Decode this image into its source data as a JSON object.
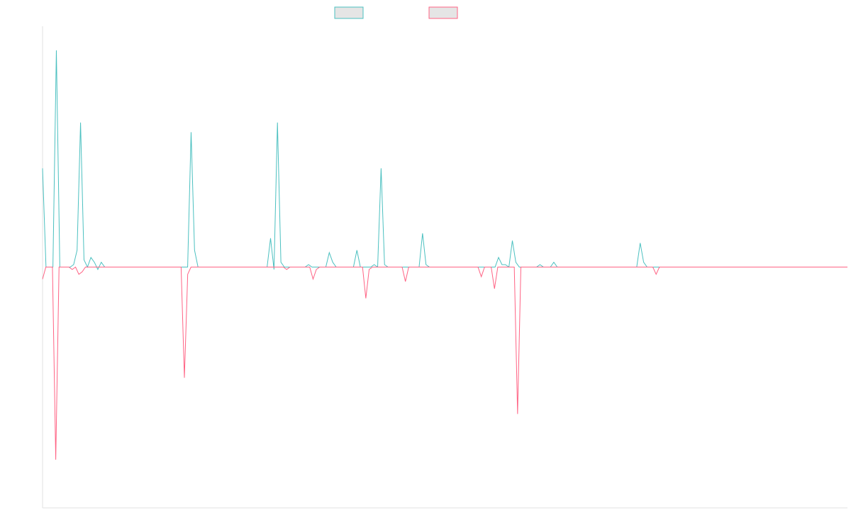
{
  "chart_data": {
    "type": "line",
    "title": "",
    "xlabel": "",
    "ylabel": "",
    "grid": false,
    "legend": {
      "placement": "top-center"
    },
    "colors": {
      "series1": "#4bc0c0",
      "series2": "#ff6384",
      "swatch_fill": "#e5e5e5",
      "axis": "#e0e0e0"
    },
    "ylim": [
      -1.0,
      1.0
    ],
    "series": [
      {
        "key": "s1",
        "values": [
          0.41,
          0,
          0,
          0,
          0.9,
          0,
          0,
          0,
          0,
          0.01,
          0.07,
          0.6,
          0.03,
          0,
          0.04,
          0.02,
          -0.01,
          0.02,
          0,
          0,
          0,
          0,
          0,
          0,
          0,
          0,
          0,
          0,
          0,
          0,
          0,
          0,
          0,
          0,
          0,
          0,
          0,
          0,
          0,
          0,
          0,
          0,
          0,
          0.56,
          0.07,
          0,
          0,
          0,
          0,
          0,
          0,
          0,
          0,
          0,
          0,
          0,
          0,
          0,
          0,
          0,
          0,
          0,
          0,
          0,
          0,
          0,
          0.12,
          -0.01,
          0.6,
          0.02,
          0,
          0,
          0,
          0,
          0,
          0,
          0,
          0.01,
          0,
          0,
          0,
          0,
          0,
          0.06,
          0.02,
          0,
          0,
          0,
          0,
          0,
          0,
          0.07,
          0,
          0,
          0,
          0,
          0.01,
          0,
          0.41,
          0.01,
          0,
          0,
          0,
          0,
          0,
          0,
          0,
          0,
          0,
          0,
          0.14,
          0.01,
          0,
          0,
          0,
          0,
          0,
          0,
          0,
          0,
          0,
          0,
          0,
          0,
          0,
          0,
          0,
          0,
          0,
          0,
          0,
          0,
          0.04,
          0.01,
          0.01,
          0,
          0.11,
          0.02,
          0,
          0,
          0,
          0,
          0,
          0,
          0.01,
          0,
          0,
          0,
          0.02,
          0,
          0,
          0,
          0,
          0,
          0,
          0,
          0,
          0,
          0,
          0,
          0,
          0,
          0,
          0,
          0,
          0,
          0,
          0,
          0,
          0,
          0,
          0,
          0,
          0.1,
          0.02,
          0,
          0,
          0,
          0,
          0,
          0,
          0,
          0,
          0,
          0,
          0,
          0,
          0,
          0,
          0,
          0,
          0,
          0,
          0,
          0,
          0,
          0,
          0,
          0,
          0,
          0,
          0,
          0,
          0,
          0,
          0,
          0,
          0,
          0,
          0,
          0,
          0,
          0,
          0,
          0,
          0,
          0,
          0,
          0,
          0,
          0,
          0,
          0,
          0,
          0,
          0,
          0,
          0,
          0,
          0,
          0,
          0,
          0,
          0
        ]
      },
      {
        "key": "s2",
        "values": [
          -0.05,
          0,
          0,
          0,
          -0.8,
          0,
          0,
          0,
          0,
          -0.01,
          0,
          -0.03,
          -0.02,
          0,
          0,
          0,
          0,
          0,
          0,
          0,
          0,
          0,
          0,
          0,
          0,
          0,
          0,
          0,
          0,
          0,
          0,
          0,
          0,
          0,
          0,
          0,
          0,
          0,
          0,
          0,
          0,
          0,
          0,
          -0.46,
          -0.03,
          0,
          0,
          0,
          0,
          0,
          0,
          0,
          0,
          0,
          0,
          0,
          0,
          0,
          0,
          0,
          0,
          0,
          0,
          0,
          0,
          0,
          0,
          0,
          0,
          0,
          0,
          0,
          0,
          0,
          -0.01,
          0,
          0,
          0,
          0,
          0,
          0,
          0,
          -0.05,
          -0.01,
          0,
          0,
          0,
          0,
          0,
          0,
          0,
          0,
          0,
          0,
          0,
          0,
          0,
          0,
          -0.13,
          -0.01,
          0,
          0,
          0,
          0,
          0,
          0,
          0,
          0,
          0,
          0,
          -0.06,
          0,
          0,
          0,
          0,
          0,
          0,
          0,
          0,
          0,
          0,
          0,
          0,
          0,
          0,
          0,
          0,
          0,
          0,
          0,
          0,
          0,
          0,
          -0.04,
          0,
          0,
          0,
          -0.09,
          0,
          0,
          0,
          0,
          0,
          0,
          -0.61,
          0,
          0,
          0,
          0,
          0,
          0,
          0,
          0,
          0,
          0,
          0,
          0,
          0,
          0,
          0,
          0,
          0,
          0,
          0,
          0,
          0,
          0,
          0,
          0,
          0,
          0,
          0,
          0,
          0,
          0,
          0,
          0,
          0,
          0,
          0,
          0,
          0,
          0,
          0,
          0,
          0,
          -0.03,
          0,
          0,
          0,
          0,
          0,
          0,
          0,
          0,
          0,
          0,
          0,
          0,
          0,
          0,
          0,
          0,
          0,
          0,
          0,
          0,
          0,
          0,
          0,
          0,
          0,
          0,
          0,
          0,
          0,
          0,
          0,
          0,
          0,
          0,
          0,
          0,
          0,
          0,
          0,
          0,
          0,
          0,
          0,
          0,
          0,
          0,
          0,
          0,
          0,
          0,
          0,
          0,
          0,
          0,
          0,
          0,
          0,
          0
        ]
      }
    ]
  }
}
